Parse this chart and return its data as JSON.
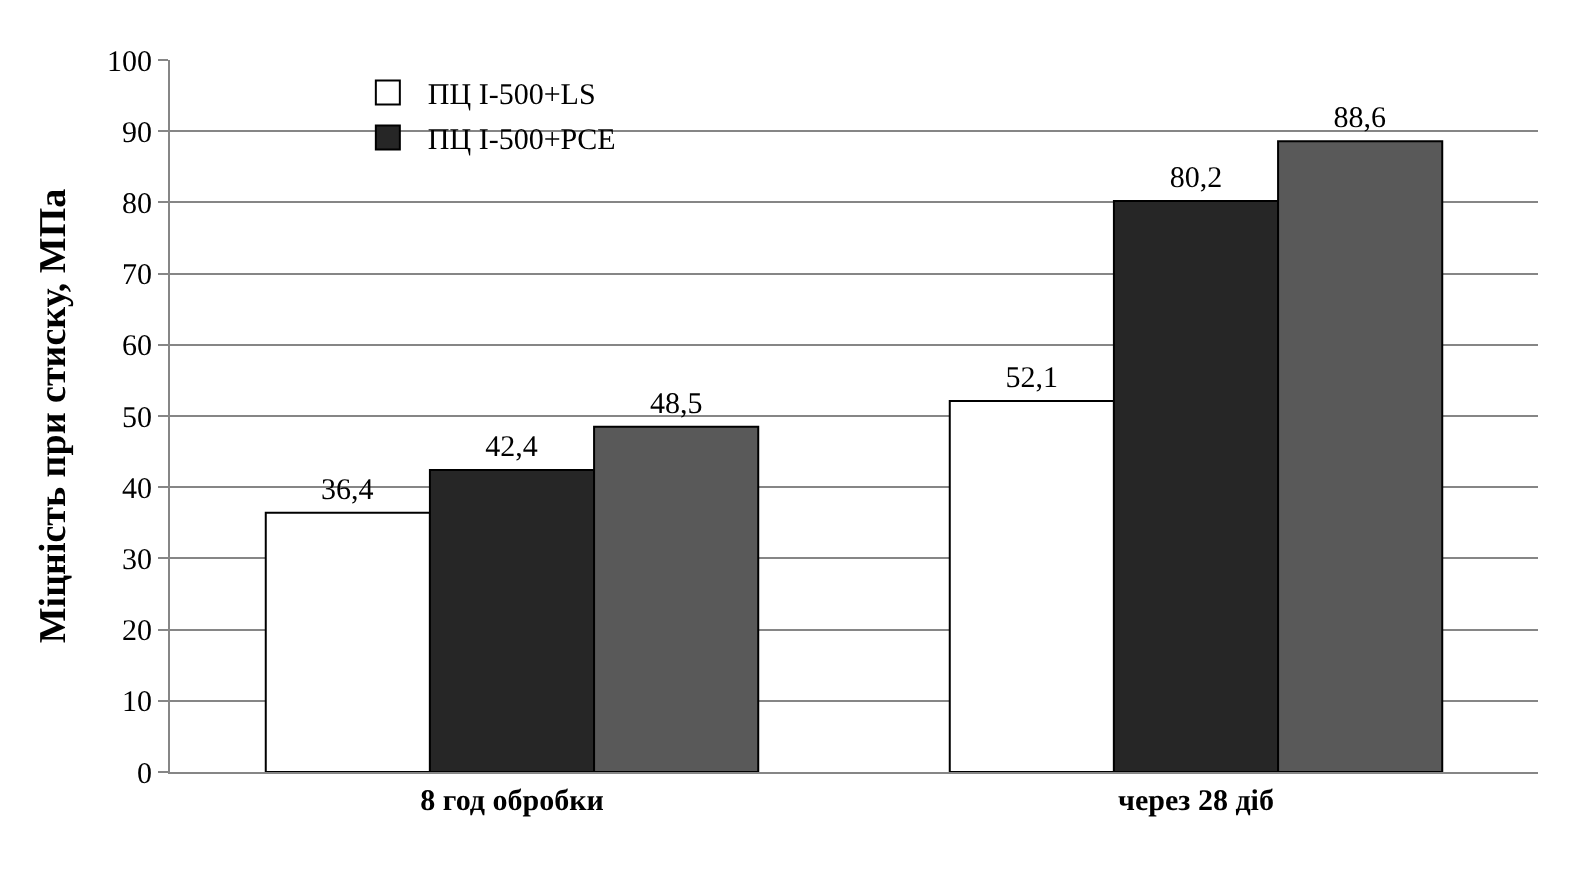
{
  "chart_data": {
    "type": "bar",
    "ylabel": "Міцність при стиску, МПа",
    "categories": [
      "8 год обробки",
      "через 28 діб"
    ],
    "series": [
      {
        "name": "ПЦ I-500+LS",
        "color": "#ffffff",
        "values": [
          36.4,
          52.1
        ],
        "value_labels": [
          "36,4",
          "52,1"
        ]
      },
      {
        "name": "ПЦ I-500+PCE",
        "color": "#262626",
        "values": [
          42.4,
          80.2
        ],
        "value_labels": [
          "42,4",
          "80,2"
        ]
      },
      {
        "color": "#595959",
        "values": [
          48.5,
          88.6
        ],
        "value_labels": [
          "48,5",
          "88,6"
        ]
      }
    ],
    "ylim": [
      0,
      100
    ],
    "yticks": [
      0,
      10,
      20,
      30,
      40,
      50,
      60,
      70,
      80,
      90,
      100
    ],
    "grid": "y",
    "legend": "top left"
  }
}
